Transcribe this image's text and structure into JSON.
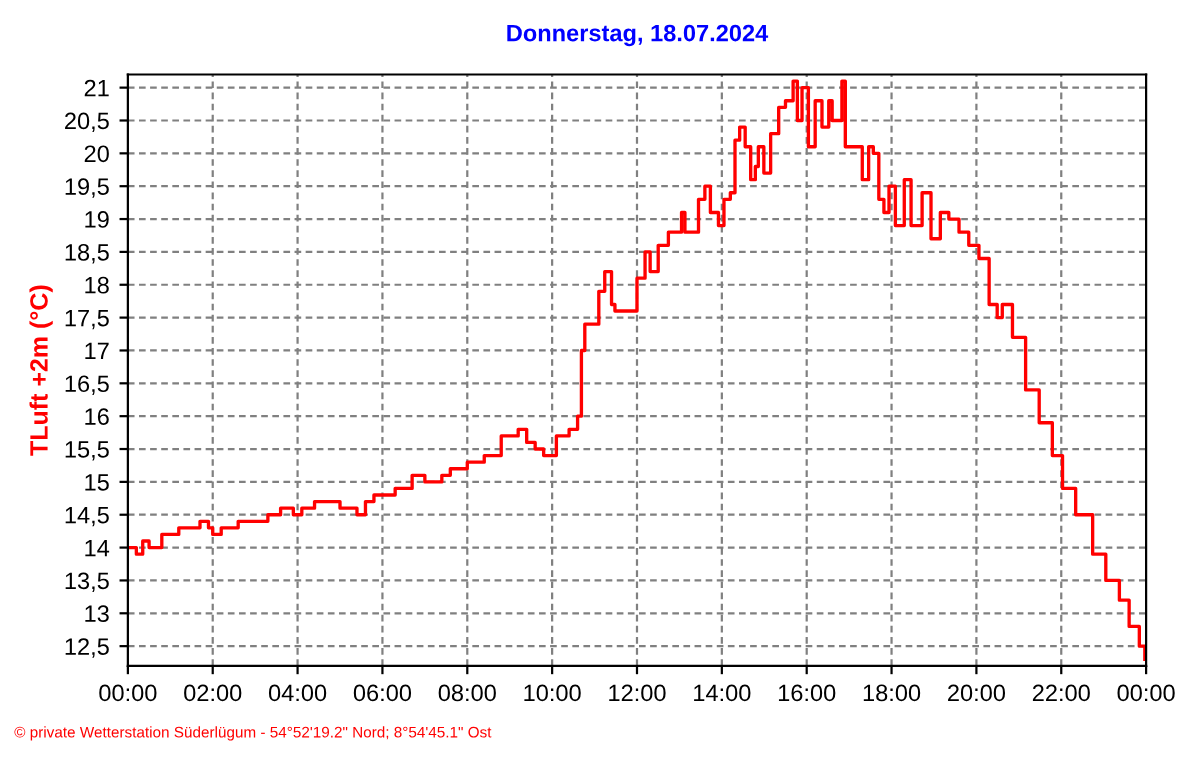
{
  "chart_data": {
    "type": "step",
    "title": "Donnerstag, 18.07.2024",
    "ylabel": "TLuft +2m (°C)",
    "annotations": [
      "© private Wetterstation Süderlügum - 54°52'19.2\" Nord; 8°54'45.1\" Ost"
    ],
    "xlim": [
      0,
      24
    ],
    "ylim": [
      12.2,
      21.2
    ],
    "xticks": [
      {
        "value": 0,
        "label": "00:00"
      },
      {
        "value": 2,
        "label": "02:00"
      },
      {
        "value": 4,
        "label": "04:00"
      },
      {
        "value": 6,
        "label": "06:00"
      },
      {
        "value": 8,
        "label": "08:00"
      },
      {
        "value": 10,
        "label": "10:00"
      },
      {
        "value": 12,
        "label": "12:00"
      },
      {
        "value": 14,
        "label": "14:00"
      },
      {
        "value": 16,
        "label": "16:00"
      },
      {
        "value": 18,
        "label": "18:00"
      },
      {
        "value": 20,
        "label": "20:00"
      },
      {
        "value": 22,
        "label": "22:00"
      },
      {
        "value": 24,
        "label": "00:00"
      }
    ],
    "yticks": [
      {
        "value": 12.5,
        "label": "12,5"
      },
      13,
      {
        "value": 13.5,
        "label": "13,5"
      },
      14,
      {
        "value": 14.5,
        "label": "14,5"
      },
      15,
      {
        "value": 15.5,
        "label": "15,5"
      },
      16,
      {
        "value": 16.5,
        "label": "16,5"
      },
      17,
      {
        "value": 17.5,
        "label": "17,5"
      },
      18,
      {
        "value": 18.5,
        "label": "18,5"
      },
      19,
      {
        "value": 19.5,
        "label": "19,5"
      },
      20,
      {
        "value": 20.5,
        "label": "20,5"
      },
      21
    ],
    "grid": true,
    "legend": false,
    "series": [
      {
        "color": "#ff0000",
        "x": [
          0,
          0.2,
          0.35,
          0.5,
          0.7,
          0.8,
          1.2,
          1.7,
          1.9,
          2.0,
          2.2,
          2.6,
          3.3,
          3.6,
          3.9,
          4.1,
          4.4,
          5.0,
          5.4,
          5.6,
          5.8,
          6.3,
          6.7,
          7.0,
          7.4,
          7.6,
          8.0,
          8.4,
          8.8,
          9.2,
          9.4,
          9.6,
          9.8,
          10.1,
          10.4,
          10.6,
          10.69,
          10.77,
          10.9,
          11.1,
          11.24,
          11.4,
          11.48,
          11.8,
          12.0,
          12.19,
          12.31,
          12.5,
          12.74,
          13.05,
          13.13,
          13.29,
          13.45,
          13.6,
          13.73,
          13.92,
          14.05,
          14.2,
          14.31,
          14.42,
          14.55,
          14.68,
          14.79,
          14.86,
          14.99,
          15.15,
          15.34,
          15.5,
          15.68,
          15.78,
          15.89,
          16.04,
          16.2,
          16.36,
          16.52,
          16.6,
          16.83,
          16.91,
          17.15,
          17.31,
          17.46,
          17.57,
          17.7,
          17.82,
          17.94,
          18.09,
          18.3,
          18.46,
          18.72,
          18.93,
          19.15,
          19.35,
          19.59,
          19.82,
          20.06,
          20.3,
          20.49,
          20.61,
          20.85,
          21.16,
          21.48,
          21.79,
          22.03,
          22.34,
          22.74,
          23.05,
          23.37,
          23.6,
          23.84,
          23.97
        ],
        "values": [
          14.0,
          13.9,
          14.1,
          14.0,
          14.0,
          14.2,
          14.3,
          14.4,
          14.3,
          14.2,
          14.3,
          14.4,
          14.5,
          14.6,
          14.5,
          14.6,
          14.7,
          14.6,
          14.5,
          14.7,
          14.8,
          14.9,
          15.1,
          15.0,
          15.1,
          15.2,
          15.3,
          15.4,
          15.7,
          15.8,
          15.6,
          15.5,
          15.4,
          15.7,
          15.8,
          16.0,
          17.0,
          17.4,
          17.4,
          17.9,
          18.2,
          17.7,
          17.6,
          17.6,
          18.1,
          18.5,
          18.2,
          18.6,
          18.8,
          19.1,
          18.8,
          18.8,
          19.3,
          19.5,
          19.1,
          18.9,
          19.3,
          19.4,
          20.2,
          20.4,
          20.1,
          19.6,
          19.8,
          20.1,
          19.7,
          20.3,
          20.7,
          20.8,
          21.1,
          20.5,
          21.0,
          20.1,
          20.8,
          20.4,
          20.8,
          20.5,
          21.1,
          20.1,
          20.1,
          19.6,
          20.1,
          20.0,
          19.3,
          19.1,
          19.5,
          18.9,
          19.6,
          18.9,
          19.4,
          18.7,
          19.1,
          19.0,
          18.8,
          18.6,
          18.4,
          17.7,
          17.5,
          17.7,
          17.2,
          16.4,
          15.9,
          15.4,
          14.9,
          14.5,
          13.9,
          13.5,
          13.2,
          12.8,
          12.5,
          12.3
        ]
      }
    ]
  }
}
